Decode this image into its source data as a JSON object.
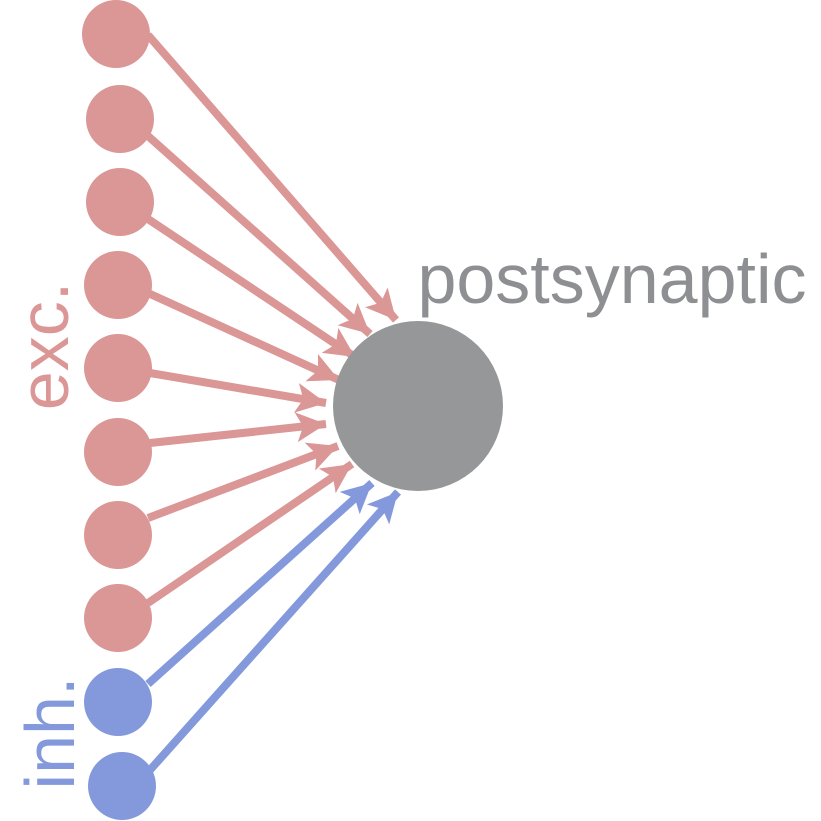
{
  "labels": {
    "postsynaptic": "postsynaptic",
    "excitatory": "exc.",
    "inhibitory": "inh."
  },
  "colors": {
    "excitatory": "#db9696",
    "inhibitory": "#8499db",
    "postsynaptic": "#969799",
    "postsynaptic_label": "#8e8f92"
  },
  "neurons": {
    "excitatory_count": 8,
    "inhibitory_count": 2
  }
}
